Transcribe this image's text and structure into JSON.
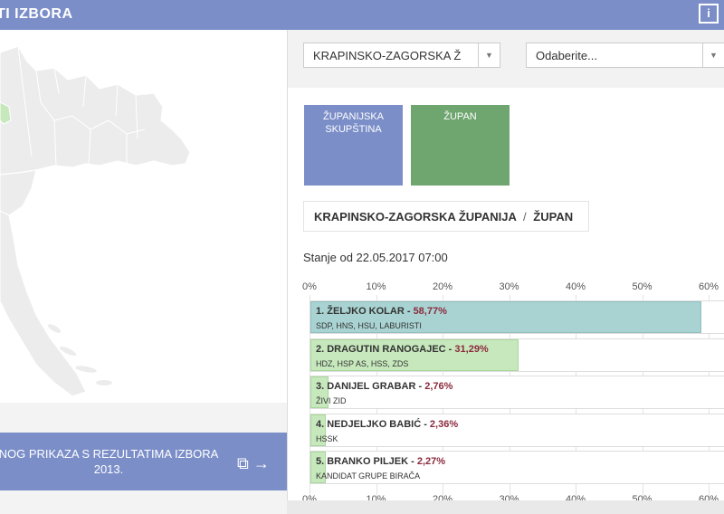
{
  "header": {
    "title": "TI IZBORA",
    "info_label": "i"
  },
  "colors": {
    "header_blue": "#7b8ec8",
    "tile_green": "#6fa56e",
    "bar_teal": "#a9d3d2",
    "bar_green": "#c7e8bd",
    "pct_red": "#8b2a3c"
  },
  "left": {
    "banner_line1": "NOG PRIKAZA S REZULTATIMA IZBORA",
    "banner_line2": "2013.",
    "banner_icons": "copy-icon arrow-right-icon"
  },
  "selects": {
    "county": {
      "value": "KRAPINSKO-ZAGORSKA Ž"
    },
    "municipality": {
      "value": "Odaberite..."
    }
  },
  "tiles": [
    {
      "line1": "ŽUPANIJSKA",
      "line2": "SKUPŠTINA"
    },
    {
      "line1": "ŽUPAN",
      "line2": ""
    }
  ],
  "breadcrumb": {
    "part1": "KRAPINSKO-ZAGORSKA ŽUPANIJA",
    "sep": "/",
    "part2": "ŽUPAN"
  },
  "status": "Stanje od 22.05.2017 07:00",
  "chart_data": {
    "type": "bar",
    "orientation": "horizontal",
    "xlim": [
      0,
      60
    ],
    "ticks": [
      "0%",
      "10%",
      "20%",
      "30%",
      "40%",
      "50%",
      "60%"
    ],
    "bars": [
      {
        "label": "1. ŽELJKO KOLAR",
        "pct_text": "58,77%",
        "value": 58.77,
        "party": "SDP, HNS, HSU, LABURISTI"
      },
      {
        "label": "2. DRAGUTIN RANOGAJEC",
        "pct_text": "31,29%",
        "value": 31.29,
        "party": "HDZ, HSP AS, HSS, ZDS"
      },
      {
        "label": "3. DANIJEL GRABAR",
        "pct_text": "2,76%",
        "value": 2.76,
        "party": "ŽIVI ZID"
      },
      {
        "label": "4. NEDJELJKO BABIĆ",
        "pct_text": "2,36%",
        "value": 2.36,
        "party": "HSSK"
      },
      {
        "label": "5. BRANKO PILJEK",
        "pct_text": "2,27%",
        "value": 2.27,
        "party": "KANDIDAT GRUPE BIRAČA"
      }
    ]
  }
}
